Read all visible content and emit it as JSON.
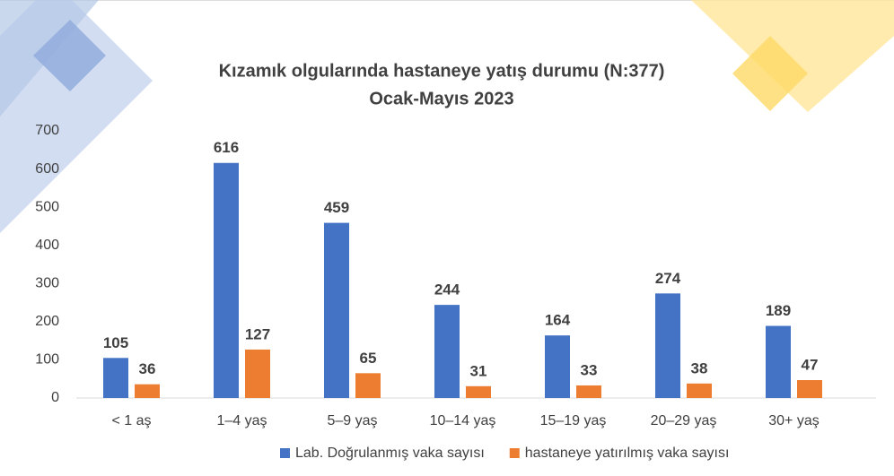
{
  "chart_data": {
    "type": "bar",
    "title": "Kızamık olgularında hastaneye yatış durumu (N:377)",
    "subtitle": "Ocak-Mayıs 2023",
    "categories": [
      "< 1 aş",
      "1–4 yaş",
      "5–9 yaş",
      "10–14 yaş",
      "15–19 yaş",
      "20–29 yaş",
      "30+ yaş"
    ],
    "series": [
      {
        "name": "Lab. Doğrulanmış vaka sayısı",
        "color": "#4472c4",
        "values": [
          105,
          616,
          459,
          244,
          164,
          274,
          189
        ]
      },
      {
        "name": "hastaneye yatırılmış vaka sayısı",
        "color": "#ed7d31",
        "values": [
          36,
          127,
          65,
          31,
          33,
          38,
          47
        ]
      }
    ],
    "ylim": [
      0,
      700
    ],
    "yticks": [
      0,
      100,
      200,
      300,
      400,
      500,
      600,
      700
    ],
    "grid": false,
    "legend": "bottom"
  }
}
